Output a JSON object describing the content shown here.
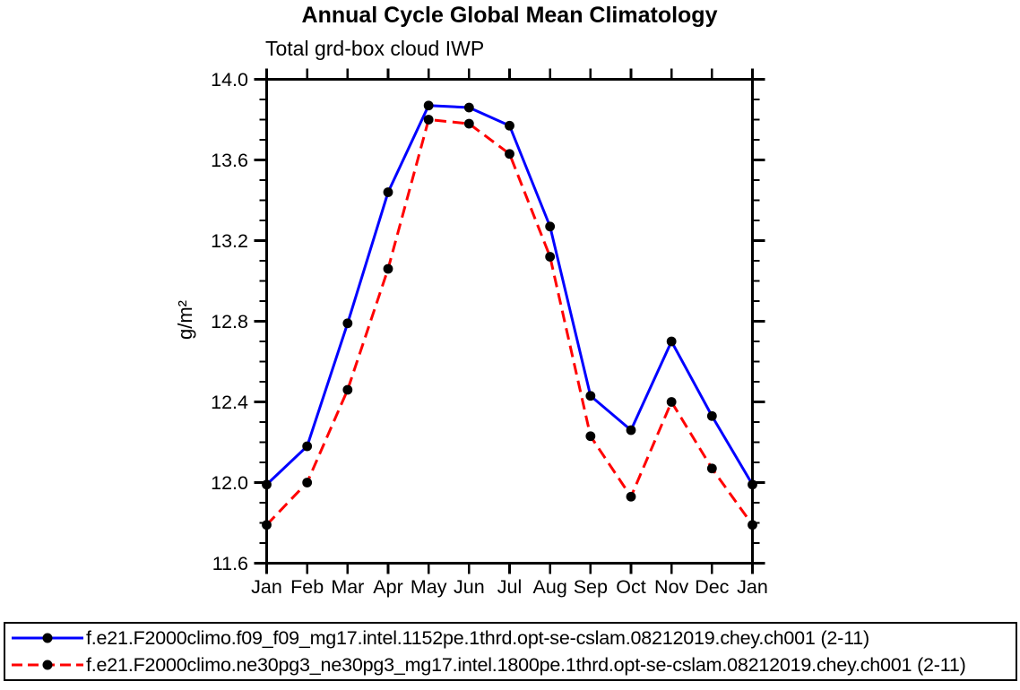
{
  "chart_data": {
    "type": "line",
    "title": "Annual Cycle Global Mean Climatology",
    "subtitle": "Total grd-box cloud IWP",
    "xlabel": "",
    "ylabel": "g/m²",
    "categories": [
      "Jan",
      "Feb",
      "Mar",
      "Apr",
      "May",
      "Jun",
      "Jul",
      "Aug",
      "Sep",
      "Oct",
      "Nov",
      "Dec",
      "Jan"
    ],
    "ylim": [
      11.6,
      14.0
    ],
    "yticks": [
      11.6,
      12.0,
      12.4,
      12.8,
      13.2,
      13.6,
      14.0
    ],
    "ytick_labels": [
      "11.6",
      "12.0",
      "12.4",
      "12.8",
      "13.2",
      "13.6",
      "14.0"
    ],
    "ytick_minor_step": 0.1,
    "grid": false,
    "legend_position": "bottom",
    "frame_color": "#000000",
    "marker_color": "#000000",
    "series": [
      {
        "name": "f.e21.F2000climo.f09_f09_mg17.intel.1152pe.1thrd.opt-se-cslam.08212019.chey.ch001 (2-11)",
        "color": "#0000ff",
        "style": "solid",
        "marker": "circle",
        "values": [
          11.99,
          12.18,
          12.79,
          13.44,
          13.87,
          13.86,
          13.77,
          13.27,
          12.43,
          12.26,
          12.7,
          12.33,
          11.99
        ]
      },
      {
        "name": "f.e21.F2000climo.ne30pg3_ne30pg3_mg17.intel.1800pe.1thrd.opt-se-cslam.08212019.chey.ch001 (2-11)",
        "color": "#ff0000",
        "style": "dashed",
        "marker": "circle",
        "values": [
          11.79,
          12.0,
          12.46,
          13.06,
          13.8,
          13.78,
          13.63,
          13.12,
          12.23,
          11.93,
          12.4,
          12.07,
          11.79
        ]
      }
    ]
  }
}
